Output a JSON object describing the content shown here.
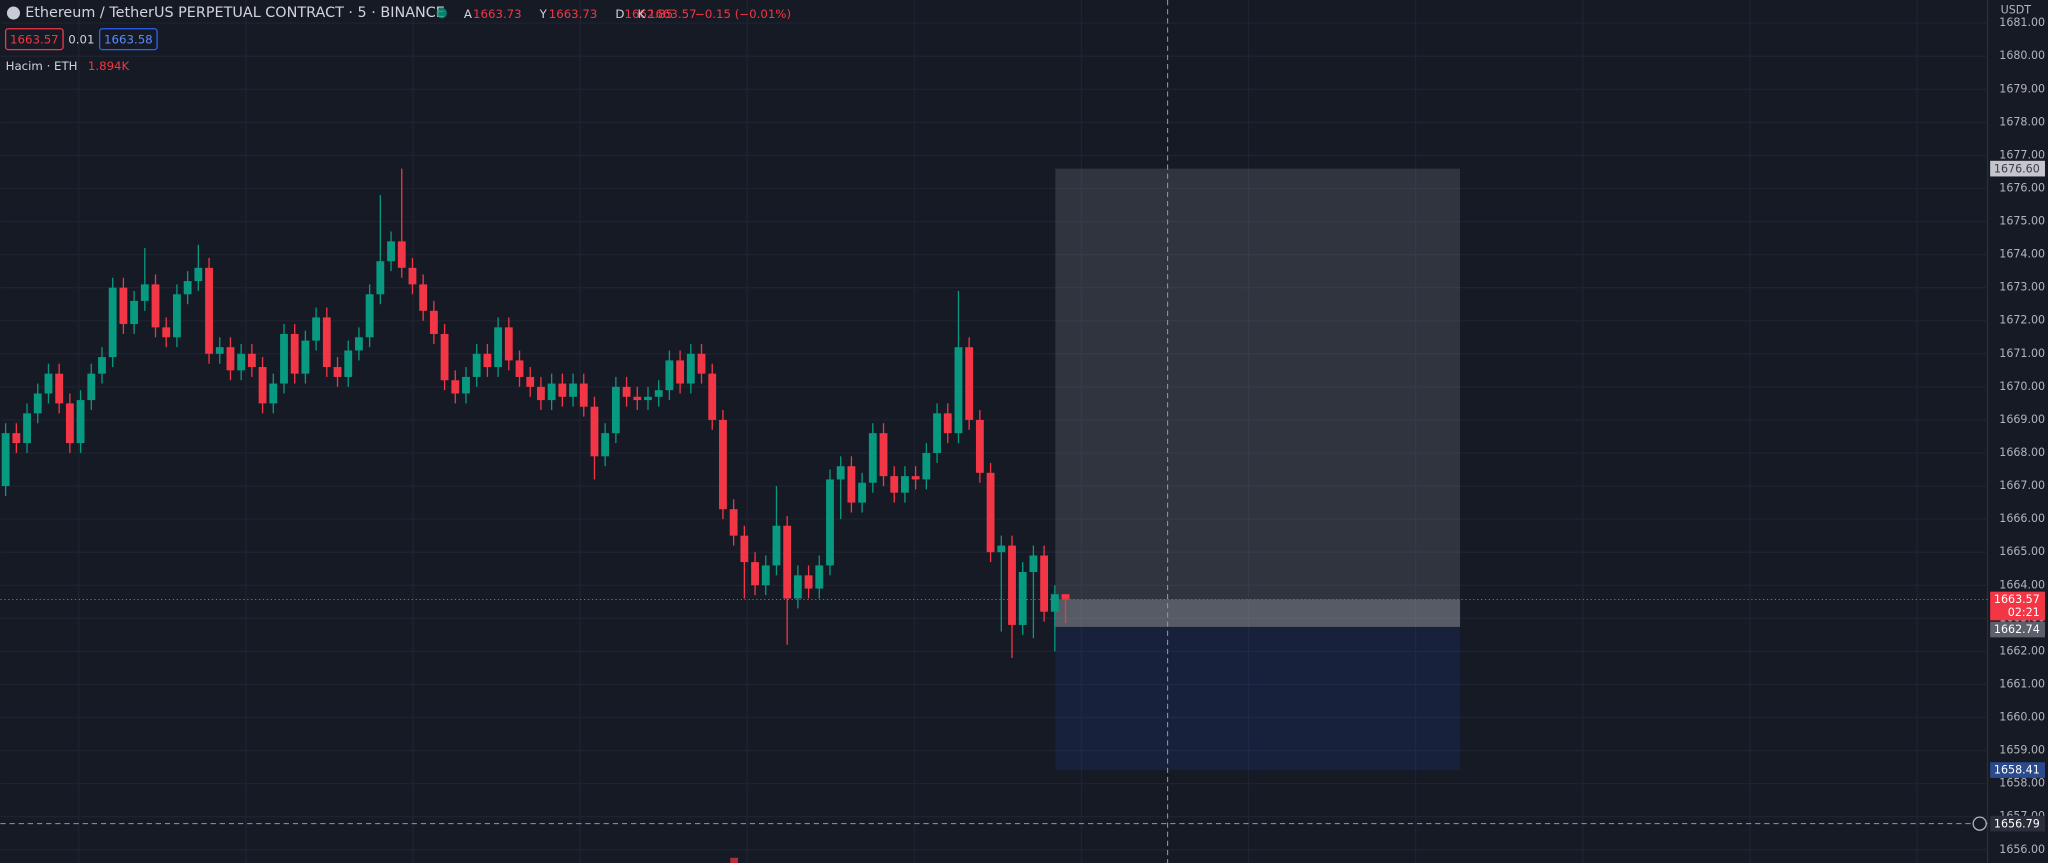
{
  "chart_data": {
    "type": "candlestick",
    "title": "Ethereum / TetherUS PERPETUAL CONTRACT · 5 · BINANCE",
    "header": {
      "A": "A",
      "open": "1663.73",
      "Y": "Y",
      "high": "1663.73",
      "D": "D",
      "low": "1662.85",
      "K": "K",
      "close": "1663.57",
      "change": "−0.15 (−0.01%)"
    },
    "buttons": {
      "sell": "1663.57",
      "spread": "0.01",
      "buy": "1663.58"
    },
    "volume": {
      "label": "Hacim · ETH",
      "value": "1.894K"
    },
    "axis_unit": "USDT",
    "up_color": "#089981",
    "down_color": "#f23645",
    "grid": true,
    "ylim": [
      1655.6,
      1681.7
    ],
    "yticks": [
      {
        "value": 1656,
        "label": "1656.00"
      },
      {
        "value": 1657,
        "label": "1657.00"
      },
      {
        "value": 1658,
        "label": "1658.00"
      },
      {
        "value": 1659,
        "label": "1659.00"
      },
      {
        "value": 1660,
        "label": "1660.00"
      },
      {
        "value": 1661,
        "label": "1661.00"
      },
      {
        "value": 1662,
        "label": "1662.00"
      },
      {
        "value": 1663,
        "label": "1663.00"
      },
      {
        "value": 1664,
        "label": "1664.00"
      },
      {
        "value": 1665,
        "label": "1665.00"
      },
      {
        "value": 1666,
        "label": "1666.00"
      },
      {
        "value": 1667,
        "label": "1667.00"
      },
      {
        "value": 1668,
        "label": "1668.00"
      },
      {
        "value": 1669,
        "label": "1669.00"
      },
      {
        "value": 1670,
        "label": "1670.00"
      },
      {
        "value": 1671,
        "label": "1671.00"
      },
      {
        "value": 1672,
        "label": "1672.00"
      },
      {
        "value": 1673,
        "label": "1673.00"
      },
      {
        "value": 1674,
        "label": "1674.00"
      },
      {
        "value": 1675,
        "label": "1675.00"
      },
      {
        "value": 1676,
        "label": "1676.00"
      },
      {
        "value": 1677,
        "label": "1677.00"
      },
      {
        "value": 1678,
        "label": "1678.00"
      },
      {
        "value": 1679,
        "label": "1679.00"
      },
      {
        "value": 1680,
        "label": "1680.00"
      },
      {
        "value": 1681,
        "label": "1681.00"
      }
    ],
    "open": [
      1667.0,
      1668.6,
      1668.3,
      1669.2,
      1669.8,
      1670.4,
      1669.5,
      1668.3,
      1669.6,
      1670.4,
      1670.9,
      1673.0,
      1671.9,
      1672.6,
      1673.1,
      1671.8,
      1671.5,
      1672.8,
      1673.2,
      1673.6,
      1671.0,
      1671.2,
      1670.5,
      1671.0,
      1670.6,
      1669.5,
      1670.1,
      1671.6,
      1670.4,
      1671.4,
      1672.1,
      1670.6,
      1670.3,
      1671.1,
      1671.5,
      1672.8,
      1673.8,
      1674.4,
      1673.6,
      1673.1,
      1672.3,
      1671.6,
      1670.2,
      1669.8,
      1670.3,
      1671.0,
      1670.6,
      1671.8,
      1670.8,
      1670.3,
      1670.0,
      1669.6,
      1670.1,
      1669.7,
      1670.1,
      1669.4,
      1667.9,
      1668.6,
      1670.0,
      1669.7,
      1669.6,
      1669.7,
      1669.9,
      1670.8,
      1670.1,
      1671.0,
      1670.4,
      1669.0,
      1666.3,
      1665.5,
      1664.7,
      1664.0,
      1664.6,
      1665.8,
      1663.6,
      1664.3,
      1663.9,
      1664.6,
      1667.2,
      1667.6,
      1666.5,
      1667.1,
      1668.6,
      1667.3,
      1666.8,
      1667.3,
      1667.2,
      1668.0,
      1669.2,
      1668.6,
      1671.2,
      1669.0,
      1667.4,
      1665.0,
      1665.2,
      1662.8,
      1664.4,
      1664.9,
      1663.2,
      1663.73
    ],
    "high": [
      1668.9,
      1668.9,
      1669.5,
      1670.1,
      1670.7,
      1670.7,
      1669.8,
      1669.9,
      1670.7,
      1671.2,
      1673.3,
      1673.3,
      1672.9,
      1674.2,
      1673.4,
      1672.1,
      1673.1,
      1673.5,
      1674.3,
      1673.9,
      1671.5,
      1671.5,
      1671.3,
      1671.3,
      1670.9,
      1670.4,
      1671.9,
      1671.9,
      1671.7,
      1672.4,
      1672.4,
      1670.9,
      1671.4,
      1671.8,
      1673.1,
      1675.8,
      1674.7,
      1676.6,
      1673.9,
      1673.4,
      1672.6,
      1671.9,
      1670.5,
      1670.6,
      1671.3,
      1671.3,
      1672.1,
      1672.1,
      1671.1,
      1670.6,
      1670.3,
      1670.4,
      1670.4,
      1670.4,
      1670.4,
      1669.7,
      1668.9,
      1670.3,
      1670.3,
      1670.0,
      1670.0,
      1670.2,
      1671.1,
      1671.1,
      1671.3,
      1671.3,
      1670.7,
      1669.3,
      1666.6,
      1665.8,
      1665.0,
      1664.9,
      1667.0,
      1666.1,
      1664.6,
      1664.6,
      1664.9,
      1667.5,
      1667.9,
      1667.9,
      1667.4,
      1668.9,
      1668.9,
      1667.6,
      1667.6,
      1667.6,
      1668.3,
      1669.5,
      1669.5,
      1672.9,
      1671.5,
      1669.3,
      1667.7,
      1665.5,
      1665.5,
      1664.7,
      1665.2,
      1665.2,
      1664.0,
      1663.73
    ],
    "low": [
      1666.7,
      1668.0,
      1668.0,
      1668.9,
      1669.5,
      1669.2,
      1668.0,
      1668.0,
      1669.3,
      1670.1,
      1670.6,
      1671.6,
      1671.6,
      1672.3,
      1671.5,
      1671.2,
      1671.2,
      1672.5,
      1672.9,
      1670.7,
      1670.7,
      1670.2,
      1670.2,
      1670.3,
      1669.2,
      1669.2,
      1669.8,
      1670.1,
      1670.1,
      1671.1,
      1670.3,
      1670.0,
      1670.0,
      1670.8,
      1671.2,
      1672.5,
      1673.5,
      1673.3,
      1672.8,
      1672.0,
      1671.3,
      1669.9,
      1669.5,
      1669.5,
      1670.0,
      1670.3,
      1670.3,
      1670.5,
      1670.0,
      1669.7,
      1669.3,
      1669.3,
      1669.4,
      1669.4,
      1669.1,
      1667.2,
      1667.6,
      1668.3,
      1669.4,
      1669.3,
      1669.3,
      1669.4,
      1669.6,
      1669.8,
      1669.8,
      1670.1,
      1668.7,
      1666.0,
      1665.2,
      1663.6,
      1663.7,
      1663.7,
      1664.3,
      1662.2,
      1663.3,
      1663.6,
      1663.6,
      1664.3,
      1666.0,
      1666.2,
      1666.2,
      1666.8,
      1667.0,
      1666.5,
      1666.5,
      1666.9,
      1666.9,
      1667.7,
      1668.3,
      1668.3,
      1668.7,
      1667.1,
      1664.7,
      1662.6,
      1661.8,
      1662.5,
      1662.4,
      1662.9,
      1662.0,
      1662.85
    ],
    "close": [
      1668.6,
      1668.3,
      1669.2,
      1669.8,
      1670.4,
      1669.5,
      1668.3,
      1669.6,
      1670.4,
      1670.9,
      1673.0,
      1671.9,
      1672.6,
      1673.1,
      1671.8,
      1671.5,
      1672.8,
      1673.2,
      1673.6,
      1671.0,
      1671.2,
      1670.5,
      1671.0,
      1670.6,
      1669.5,
      1670.1,
      1671.6,
      1670.4,
      1671.4,
      1672.1,
      1670.6,
      1670.3,
      1671.1,
      1671.5,
      1672.8,
      1673.8,
      1674.4,
      1673.6,
      1673.1,
      1672.3,
      1671.6,
      1670.2,
      1669.8,
      1670.3,
      1671.0,
      1670.6,
      1671.8,
      1670.8,
      1670.3,
      1670.0,
      1669.6,
      1670.1,
      1669.7,
      1670.1,
      1669.4,
      1667.9,
      1668.6,
      1670.0,
      1669.7,
      1669.6,
      1669.7,
      1669.9,
      1670.8,
      1670.1,
      1671.0,
      1670.4,
      1669.0,
      1666.3,
      1665.5,
      1664.7,
      1664.0,
      1664.6,
      1665.8,
      1663.6,
      1664.3,
      1663.9,
      1664.6,
      1667.2,
      1667.6,
      1666.5,
      1667.1,
      1668.6,
      1667.3,
      1666.8,
      1667.3,
      1667.2,
      1668.0,
      1669.2,
      1668.6,
      1671.2,
      1669.0,
      1667.4,
      1665.0,
      1665.2,
      1662.8,
      1664.4,
      1664.9,
      1663.2,
      1663.73,
      1663.57
    ],
    "position": {
      "target": {
        "value": 1676.6,
        "label": "1676.60"
      },
      "entry": {
        "value": 1662.74,
        "label": "1662.74"
      },
      "stop": {
        "value": 1658.41,
        "label": "1658.41"
      }
    },
    "last_price": {
      "value": 1663.57,
      "label": "1663.57",
      "countdown": "02:21"
    },
    "crosshair": {
      "value": 1656.79,
      "label": "1656.79"
    }
  }
}
